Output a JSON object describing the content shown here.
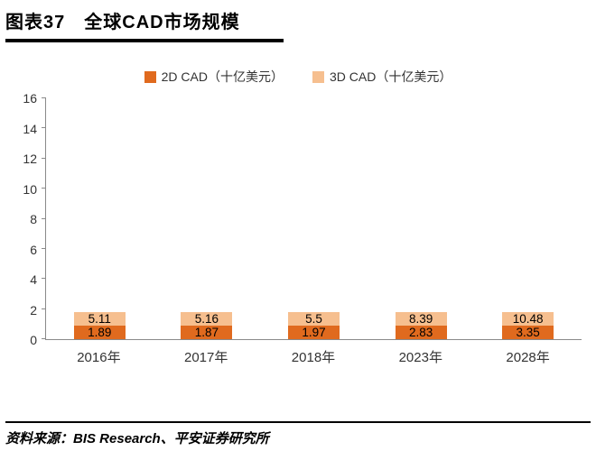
{
  "header": {
    "title": "图表37　全球CAD市场规模"
  },
  "footer": {
    "source": "资料来源：BIS Research、平安证券研究所"
  },
  "chart_data": {
    "type": "bar",
    "stacked": true,
    "title": "全球CAD市场规模",
    "unit": "十亿美元",
    "categories": [
      "2016年",
      "2017年",
      "2018年",
      "2023年",
      "2028年"
    ],
    "series": [
      {
        "name": "2D CAD（十亿美元）",
        "color": "#e06a1e",
        "values": [
          1.89,
          1.87,
          1.97,
          2.83,
          3.35
        ]
      },
      {
        "name": "3D CAD（十亿美元）",
        "color": "#f6bf8f",
        "values": [
          5.11,
          5.16,
          5.5,
          8.39,
          10.48
        ]
      }
    ],
    "ylim": [
      0,
      16
    ],
    "ytick_step": 2,
    "grid": false,
    "legend_position": "top"
  }
}
